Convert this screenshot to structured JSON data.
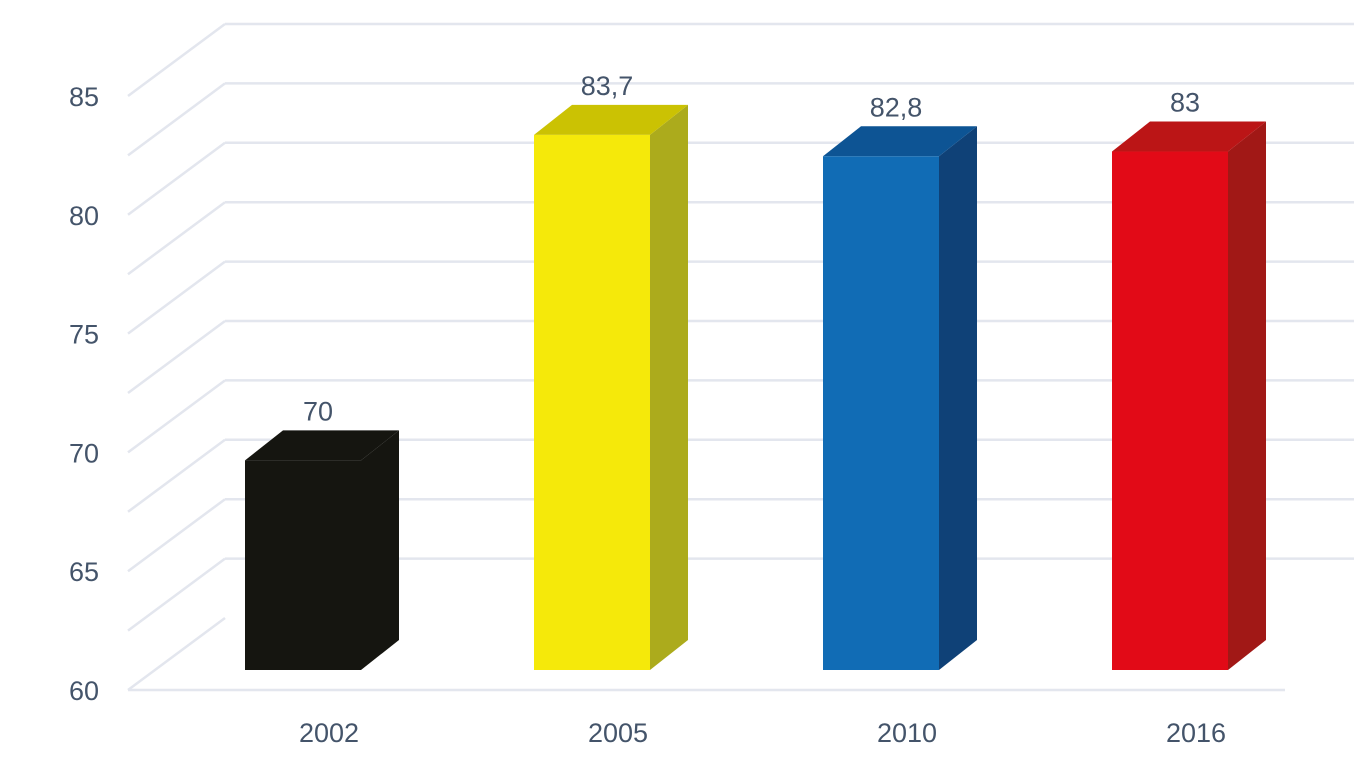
{
  "chart_data": {
    "type": "bar",
    "categories": [
      "2002",
      "2005",
      "2010",
      "2016"
    ],
    "values": [
      70,
      83.7,
      82.8,
      83
    ],
    "value_labels": [
      "70",
      "83,7",
      "82,8",
      "83"
    ],
    "y_ticks": [
      "60",
      "65",
      "70",
      "75",
      "80",
      "85"
    ],
    "ylim": [
      60,
      85
    ],
    "grid": true,
    "legend": "none",
    "style": "3d-column",
    "title": "",
    "xlabel": "",
    "ylabel": "",
    "colors": {
      "text": "#44546a",
      "grid": "#e3e6ee",
      "bars": [
        {
          "front": "#151510",
          "top": "#151510",
          "side": "#151510"
        },
        {
          "front": "#f5e90a",
          "top": "#cbc203",
          "side": "#acab1c"
        },
        {
          "front": "#116cb5",
          "top": "#0d5494",
          "side": "#0f4177"
        },
        {
          "front": "#e20a17",
          "top": "#bb1516",
          "side": "#a11816"
        }
      ]
    }
  }
}
